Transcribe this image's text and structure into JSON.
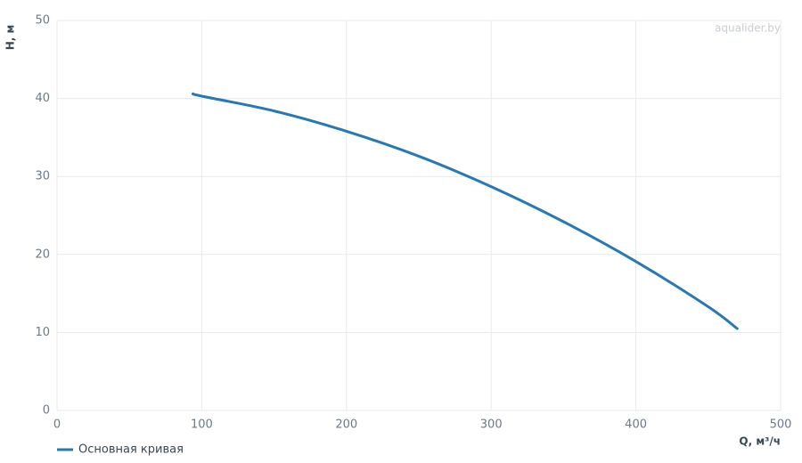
{
  "chart_data": {
    "type": "line",
    "x_label": "Q, м³/ч",
    "y_label": "H, м",
    "watermark": "aqualider.by",
    "x": [
      94,
      100,
      150,
      200,
      250,
      300,
      350,
      400,
      450,
      470
    ],
    "series": [
      {
        "name": "Основная кривая",
        "color": "#2a78b0",
        "values": [
          40.6,
          40.3,
          38.4,
          35.8,
          32.6,
          28.7,
          24.2,
          19.1,
          13.3,
          10.5
        ]
      }
    ],
    "xlim": [
      0,
      500
    ],
    "xticks": [
      0,
      100,
      200,
      300,
      400,
      500
    ],
    "ylim": [
      0,
      50
    ],
    "yticks": [
      0,
      10,
      20,
      30,
      40,
      50
    ],
    "grid": true,
    "legend": "bottom-left"
  }
}
